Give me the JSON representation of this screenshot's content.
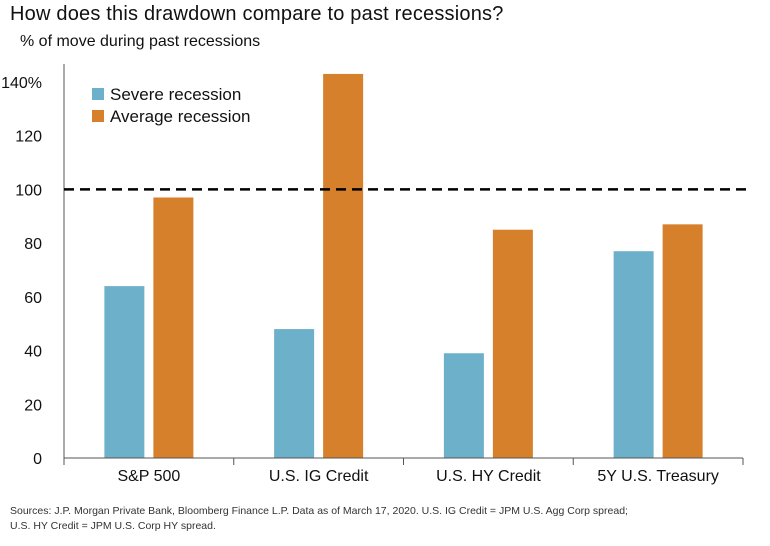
{
  "header": {
    "title": "How does this drawdown compare to past recessions?",
    "subtitle": "% of move during past recessions"
  },
  "footer": {
    "source_line1": "Sources: J.P. Morgan Private Bank, Bloomberg Finance L.P. Data as of March 17, 2020. U.S. IG Credit = JPM U.S. Agg Corp spread;",
    "source_line2": "U.S. HY Credit = JPM U.S. Corp HY spread."
  },
  "chart_data": {
    "type": "bar",
    "categories": [
      "S&P 500",
      "U.S. IG Credit",
      "U.S. HY Credit",
      "5Y U.S. Treasury"
    ],
    "series": [
      {
        "name": "Severe recession",
        "values": [
          64,
          48,
          39,
          77
        ],
        "color": "#6db0ca"
      },
      {
        "name": "Average recession",
        "values": [
          97,
          143,
          85,
          87
        ],
        "color": "#d6802b"
      }
    ],
    "ylim": [
      0,
      140
    ],
    "yticks": [
      0,
      20,
      40,
      60,
      80,
      100,
      120,
      140
    ],
    "ytick_labels": [
      "0",
      "20",
      "40",
      "60",
      "80",
      "100",
      "120",
      "140%"
    ],
    "reference_line": {
      "value": 100,
      "style": "dashed",
      "color": "#000000"
    },
    "legend_position": "top-left",
    "grid": false
  }
}
